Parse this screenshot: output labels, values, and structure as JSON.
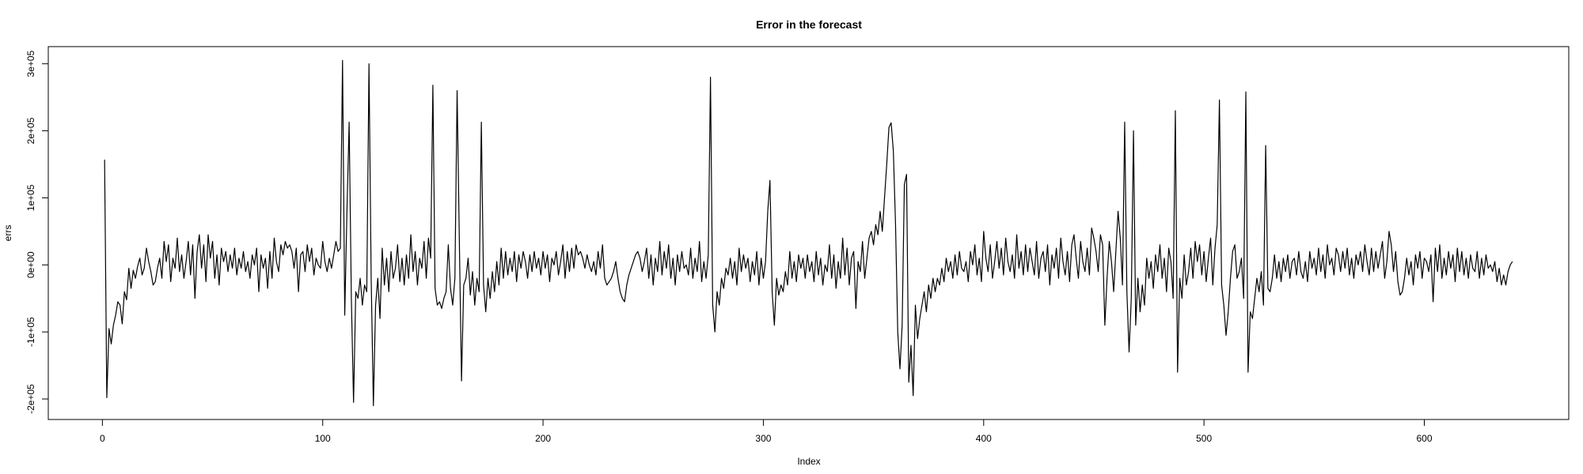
{
  "chart_data": {
    "type": "line",
    "title": "Error in the forecast",
    "xlabel": "Index",
    "ylabel": "errs",
    "xlim": [
      -24.56,
      665.56
    ],
    "xticks": [
      0,
      100,
      200,
      300,
      400,
      500,
      600
    ],
    "ylim": [
      -230600,
      325600
    ],
    "yticks": [
      {
        "value": -200000,
        "label": "-2e+05"
      },
      {
        "value": -100000,
        "label": "-1e+05"
      },
      {
        "value": 0,
        "label": "0e+00"
      },
      {
        "value": 100000,
        "label": "1e+05"
      },
      {
        "value": 200000,
        "label": "2e+05"
      },
      {
        "value": 300000,
        "label": "3e+05"
      }
    ],
    "color": "#000000",
    "values": [
      157000,
      -198000,
      -95000,
      -118000,
      -90000,
      -75000,
      -55000,
      -60000,
      -88000,
      -40000,
      -52000,
      -5000,
      -35000,
      -8000,
      -20000,
      -2000,
      10000,
      -15000,
      -5000,
      25000,
      5000,
      -10000,
      -30000,
      -25000,
      -5000,
      10000,
      -20000,
      35000,
      5000,
      30000,
      -25000,
      10000,
      -5000,
      40000,
      -10000,
      15000,
      -20000,
      5000,
      35000,
      -15000,
      30000,
      -50000,
      20000,
      45000,
      -5000,
      30000,
      -25000,
      45000,
      10000,
      35000,
      -20000,
      15000,
      -30000,
      25000,
      5000,
      20000,
      -10000,
      15000,
      -5000,
      25000,
      -15000,
      10000,
      -5000,
      20000,
      -10000,
      5000,
      -20000,
      15000,
      0,
      25000,
      -40000,
      15000,
      -5000,
      10000,
      -35000,
      20000,
      -20000,
      40000,
      5000,
      -10000,
      30000,
      15000,
      35000,
      25000,
      30000,
      20000,
      -5000,
      25000,
      -40000,
      15000,
      20000,
      -10000,
      30000,
      5000,
      25000,
      -15000,
      10000,
      0,
      -5000,
      35000,
      5000,
      -10000,
      10000,
      -5000,
      15000,
      35000,
      20000,
      25000,
      305000,
      -75000,
      80000,
      213000,
      -50000,
      -205000,
      -40000,
      -50000,
      -20000,
      -60000,
      -30000,
      -40000,
      300000,
      -20000,
      -210000,
      -60000,
      -20000,
      -80000,
      25000,
      -30000,
      10000,
      -40000,
      20000,
      -20000,
      -5000,
      30000,
      -25000,
      10000,
      -30000,
      15000,
      -20000,
      45000,
      -10000,
      20000,
      -30000,
      10000,
      -5000,
      35000,
      -20000,
      40000,
      10000,
      268000,
      -35000,
      -60000,
      -55000,
      -65000,
      -50000,
      -40000,
      30000,
      -35000,
      -60000,
      -20000,
      260000,
      40000,
      -173000,
      -30000,
      -20000,
      10000,
      -45000,
      -10000,
      -60000,
      -20000,
      -40000,
      213000,
      -30000,
      -70000,
      -20000,
      -50000,
      -10000,
      -40000,
      5000,
      -30000,
      25000,
      -20000,
      20000,
      -15000,
      10000,
      -10000,
      20000,
      -25000,
      15000,
      -5000,
      20000,
      5000,
      -20000,
      15000,
      -10000,
      20000,
      -5000,
      10000,
      -15000,
      20000,
      -5000,
      15000,
      -25000,
      10000,
      0,
      20000,
      -15000,
      5000,
      30000,
      -20000,
      20000,
      -10000,
      25000,
      -5000,
      30000,
      15000,
      20000,
      10000,
      -5000,
      15000,
      0,
      -10000,
      5000,
      -15000,
      20000,
      -5000,
      30000,
      -20000,
      -30000,
      -25000,
      -20000,
      -10000,
      5000,
      -20000,
      -40000,
      -50000,
      -55000,
      -30000,
      -15000,
      -5000,
      5000,
      15000,
      20000,
      10000,
      -10000,
      5000,
      25000,
      -20000,
      15000,
      -30000,
      10000,
      -10000,
      35000,
      -15000,
      20000,
      -5000,
      30000,
      -20000,
      10000,
      -30000,
      15000,
      -10000,
      20000,
      -5000,
      0,
      -15000,
      25000,
      -20000,
      10000,
      -10000,
      35000,
      -25000,
      5000,
      -20000,
      15000,
      280000,
      -60000,
      -100000,
      -40000,
      -60000,
      -20000,
      -35000,
      -5000,
      -15000,
      10000,
      -20000,
      5000,
      -30000,
      25000,
      -10000,
      15000,
      -5000,
      10000,
      -25000,
      5000,
      -15000,
      20000,
      -30000,
      10000,
      -20000,
      5000,
      80000,
      126000,
      -40000,
      -90000,
      -20000,
      -45000,
      -30000,
      -40000,
      -10000,
      -30000,
      20000,
      -20000,
      5000,
      -25000,
      15000,
      -5000,
      10000,
      -20000,
      15000,
      -10000,
      5000,
      -25000,
      20000,
      -15000,
      10000,
      -30000,
      0,
      -10000,
      30000,
      -20000,
      15000,
      -35000,
      5000,
      -20000,
      40000,
      -15000,
      25000,
      -30000,
      10000,
      20000,
      -65000,
      5000,
      -10000,
      35000,
      -20000,
      10000,
      40000,
      50000,
      30000,
      60000,
      45000,
      80000,
      50000,
      100000,
      150000,
      205000,
      212000,
      170000,
      60000,
      -100000,
      -155000,
      -90000,
      120000,
      135000,
      -175000,
      -120000,
      -195000,
      -60000,
      -110000,
      -80000,
      -60000,
      -40000,
      -70000,
      -30000,
      -50000,
      -20000,
      -40000,
      -20000,
      -30000,
      -5000,
      -25000,
      10000,
      -10000,
      5000,
      -20000,
      15000,
      -15000,
      20000,
      -5000,
      -10000,
      5000,
      -25000,
      20000,
      0,
      30000,
      -15000,
      10000,
      -25000,
      50000,
      10000,
      -10000,
      30000,
      -20000,
      5000,
      35000,
      -5000,
      25000,
      -15000,
      40000,
      5000,
      -10000,
      15000,
      -20000,
      45000,
      -5000,
      20000,
      -15000,
      30000,
      -10000,
      25000,
      5000,
      -15000,
      35000,
      -20000,
      10000,
      20000,
      -10000,
      30000,
      -30000,
      15000,
      -5000,
      25000,
      -20000,
      40000,
      5000,
      -15000,
      20000,
      -25000,
      30000,
      45000,
      10000,
      -20000,
      35000,
      5000,
      -10000,
      25000,
      -15000,
      55000,
      40000,
      20000,
      -10000,
      45000,
      30000,
      -90000,
      -20000,
      35000,
      5000,
      -40000,
      20000,
      80000,
      40000,
      -30000,
      213000,
      -40000,
      -130000,
      -50000,
      200000,
      -90000,
      -20000,
      -70000,
      -30000,
      -60000,
      10000,
      -20000,
      5000,
      -35000,
      15000,
      -10000,
      30000,
      -20000,
      10000,
      -40000,
      25000,
      5000,
      -50000,
      230000,
      -160000,
      -20000,
      -50000,
      15000,
      -30000,
      -10000,
      25000,
      -20000,
      35000,
      5000,
      30000,
      -15000,
      20000,
      -25000,
      10000,
      40000,
      -30000,
      25000,
      60000,
      246000,
      -30000,
      -60000,
      -105000,
      -70000,
      -20000,
      20000,
      30000,
      -20000,
      -10000,
      10000,
      -50000,
      258000,
      -160000,
      -70000,
      -80000,
      -50000,
      -20000,
      -40000,
      -10000,
      -60000,
      178000,
      -35000,
      -40000,
      -20000,
      15000,
      -20000,
      5000,
      -25000,
      10000,
      -10000,
      15000,
      -20000,
      5000,
      10000,
      -15000,
      20000,
      -10000,
      -20000,
      5000,
      -25000,
      20000,
      -5000,
      10000,
      -15000,
      25000,
      -10000,
      15000,
      -20000,
      30000,
      0,
      10000,
      -15000,
      25000,
      15000,
      -10000,
      20000,
      -5000,
      25000,
      -15000,
      10000,
      -20000,
      15000,
      0,
      20000,
      -10000,
      30000,
      5000,
      -15000,
      25000,
      -10000,
      20000,
      -5000,
      15000,
      35000,
      -20000,
      5000,
      50000,
      30000,
      -10000,
      20000,
      -25000,
      -45000,
      -40000,
      -20000,
      10000,
      -15000,
      5000,
      -30000,
      15000,
      -5000,
      20000,
      -20000,
      10000,
      5000,
      -10000,
      15000,
      -55000,
      25000,
      -10000,
      30000,
      -20000,
      10000,
      -15000,
      20000,
      -5000,
      15000,
      -25000,
      25000,
      -10000,
      20000,
      -15000,
      10000,
      -20000,
      15000,
      -5000,
      -10000,
      20000,
      -20000,
      10000,
      -15000,
      15000,
      -5000,
      0,
      -10000,
      5000,
      -25000,
      -5000,
      -30000,
      -15000,
      -30000,
      -10000,
      0,
      5000
    ]
  }
}
